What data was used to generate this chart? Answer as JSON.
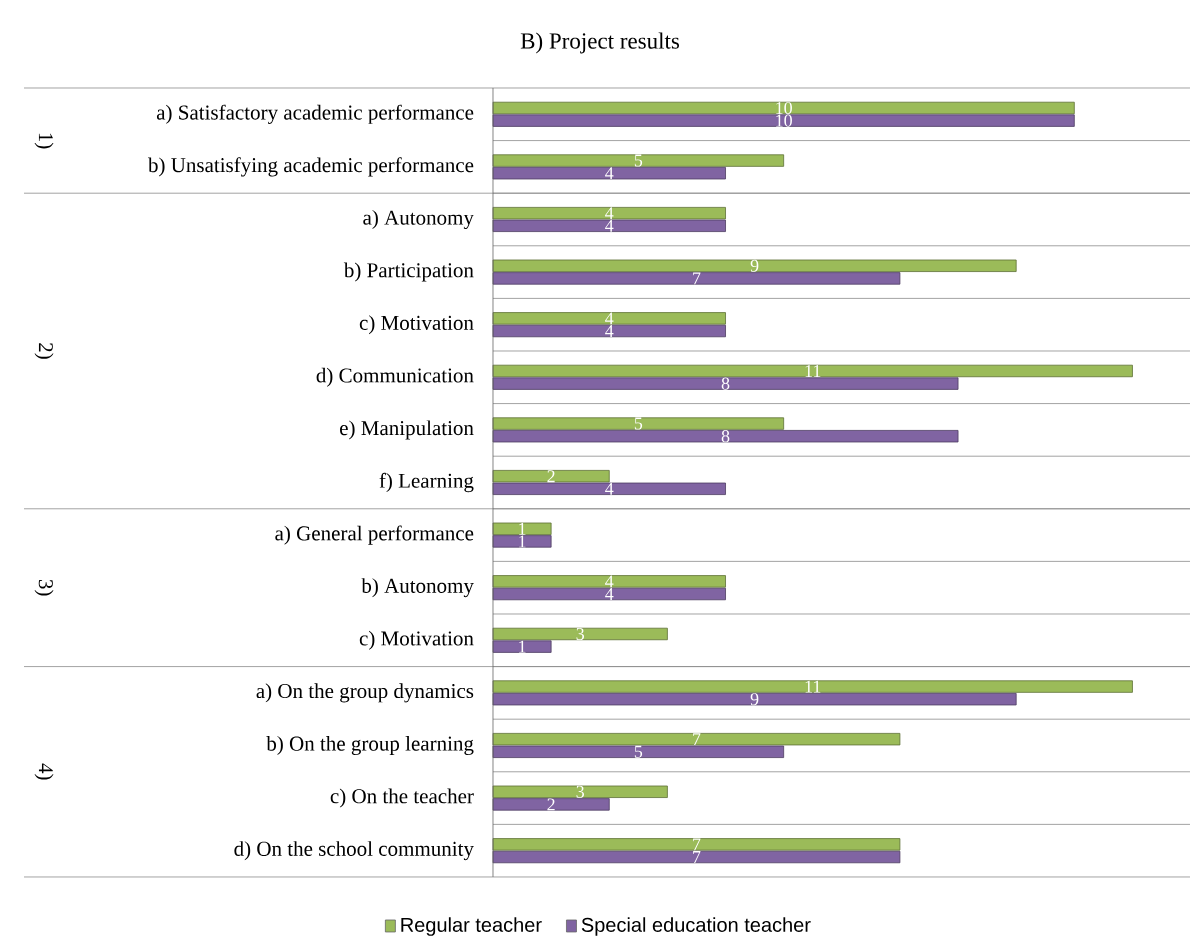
{
  "chart_data": {
    "type": "bar",
    "orientation": "horizontal",
    "title": "B) Project results",
    "categories": [
      "a) Satisfactory academic performance",
      "b) Unsatisfying academic performance",
      "a) Autonomy",
      "b) Participation",
      "c) Motivation",
      "d) Communication",
      "e) Manipulation",
      "f) Learning",
      "a) General performance",
      "b) Autonomy",
      "c) Motivation",
      "a) On the group dynamics",
      "b) On the group learning",
      "c) On the teacher",
      "d) On the school community"
    ],
    "series": [
      {
        "name": "Regular teacher",
        "color": "#9bbb59",
        "values": [
          10,
          5,
          4,
          9,
          4,
          11,
          5,
          2,
          1,
          4,
          3,
          11,
          7,
          3,
          7
        ]
      },
      {
        "name": "Special education teacher",
        "color": "#8064a2",
        "values": [
          10,
          4,
          4,
          7,
          4,
          8,
          8,
          4,
          1,
          4,
          1,
          9,
          5,
          2,
          7
        ]
      }
    ],
    "annotations": [
      "1)",
      "2)",
      "3)",
      "4)"
    ],
    "data_labels": true,
    "legend": "bottom"
  }
}
